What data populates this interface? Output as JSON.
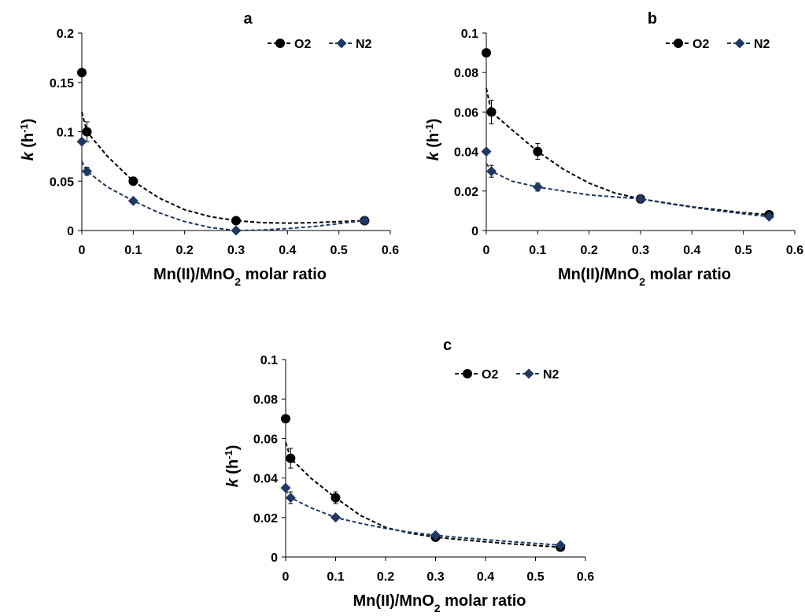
{
  "figure": {
    "panels_layout": "two on top row, one centered below"
  },
  "chart_data": [
    {
      "type": "scatter",
      "title": "a",
      "xlabel": "Mn(II)/MnO2 molar ratio",
      "ylabel": "k (h-1)",
      "xlim": [
        0,
        0.6
      ],
      "ylim": [
        0,
        0.2
      ],
      "x_ticks": [
        "0",
        "0.1",
        "0.2",
        "0.3",
        "0.4",
        "0.5",
        "0.6"
      ],
      "y_ticks": [
        "0",
        "0.05",
        "0.1",
        "0.15",
        "0.2"
      ],
      "legend_position": "top-right",
      "grid": false,
      "series": [
        {
          "name": "O2",
          "color": "#000000",
          "marker": "circle",
          "line": "dashed trend",
          "points": [
            {
              "x": 0,
              "y": 0.16,
              "err": 0.0
            },
            {
              "x": 0.01,
              "y": 0.1,
              "err": 0.01
            },
            {
              "x": 0.1,
              "y": 0.05,
              "err": 0.004
            },
            {
              "x": 0.3,
              "y": 0.01,
              "err": 0.0
            },
            {
              "x": 0.55,
              "y": 0.01,
              "err": 0.0
            }
          ],
          "trend": [
            [
              0,
              0.12
            ],
            [
              0.01,
              0.1
            ],
            [
              0.05,
              0.075
            ],
            [
              0.1,
              0.05
            ],
            [
              0.15,
              0.033
            ],
            [
              0.2,
              0.021
            ],
            [
              0.25,
              0.014
            ],
            [
              0.3,
              0.01
            ],
            [
              0.35,
              0.008
            ],
            [
              0.4,
              0.0075
            ],
            [
              0.45,
              0.008
            ],
            [
              0.5,
              0.009
            ],
            [
              0.55,
              0.01
            ]
          ]
        },
        {
          "name": "N2",
          "color": "#1f3864",
          "marker": "diamond",
          "line": "dashed trend",
          "points": [
            {
              "x": 0,
              "y": 0.09,
              "err": 0.0
            },
            {
              "x": 0.01,
              "y": 0.06,
              "err": 0.004
            },
            {
              "x": 0.1,
              "y": 0.03,
              "err": 0.0
            },
            {
              "x": 0.3,
              "y": 0.0,
              "err": 0.0
            },
            {
              "x": 0.55,
              "y": 0.01,
              "err": 0.0
            }
          ],
          "trend": [
            [
              0,
              0.07
            ],
            [
              0.01,
              0.06
            ],
            [
              0.05,
              0.044
            ],
            [
              0.1,
              0.03
            ],
            [
              0.15,
              0.018
            ],
            [
              0.2,
              0.009
            ],
            [
              0.25,
              0.003
            ],
            [
              0.3,
              0.0
            ],
            [
              0.35,
              0.0005
            ],
            [
              0.4,
              0.002
            ],
            [
              0.45,
              0.004
            ],
            [
              0.5,
              0.007
            ],
            [
              0.55,
              0.01
            ]
          ]
        }
      ]
    },
    {
      "type": "scatter",
      "title": "b",
      "xlabel": "Mn(II)/MnO2 molar ratio",
      "ylabel": "k (h-1)",
      "xlim": [
        0,
        0.6
      ],
      "ylim": [
        0,
        0.1
      ],
      "x_ticks": [
        "0",
        "0.1",
        "0.2",
        "0.3",
        "0.4",
        "0.5",
        "0.6"
      ],
      "y_ticks": [
        "0",
        "0.02",
        "0.04",
        "0.06",
        "0.08",
        "0.1"
      ],
      "legend_position": "top-right",
      "grid": false,
      "series": [
        {
          "name": "O2",
          "color": "#000000",
          "marker": "circle",
          "line": "dashed trend",
          "points": [
            {
              "x": 0,
              "y": 0.09,
              "err": 0.0
            },
            {
              "x": 0.01,
              "y": 0.06,
              "err": 0.006
            },
            {
              "x": 0.1,
              "y": 0.04,
              "err": 0.004
            },
            {
              "x": 0.3,
              "y": 0.016,
              "err": 0.0
            },
            {
              "x": 0.55,
              "y": 0.008,
              "err": 0.0
            }
          ],
          "trend": [
            [
              0,
              0.072
            ],
            [
              0.01,
              0.06
            ],
            [
              0.05,
              0.051
            ],
            [
              0.1,
              0.04
            ],
            [
              0.15,
              0.031
            ],
            [
              0.2,
              0.024
            ],
            [
              0.25,
              0.019
            ],
            [
              0.3,
              0.016
            ],
            [
              0.35,
              0.014
            ],
            [
              0.4,
              0.012
            ],
            [
              0.45,
              0.0105
            ],
            [
              0.5,
              0.009
            ],
            [
              0.55,
              0.008
            ]
          ]
        },
        {
          "name": "N2",
          "color": "#1f3864",
          "marker": "diamond",
          "line": "dashed trend",
          "points": [
            {
              "x": 0,
              "y": 0.04,
              "err": 0.0
            },
            {
              "x": 0.01,
              "y": 0.03,
              "err": 0.003
            },
            {
              "x": 0.1,
              "y": 0.022,
              "err": 0.002
            },
            {
              "x": 0.3,
              "y": 0.016,
              "err": 0.0
            },
            {
              "x": 0.55,
              "y": 0.007,
              "err": 0.0
            }
          ],
          "trend": [
            [
              0,
              0.034
            ],
            [
              0.01,
              0.03
            ],
            [
              0.05,
              0.025
            ],
            [
              0.1,
              0.022
            ],
            [
              0.15,
              0.02
            ],
            [
              0.2,
              0.018
            ],
            [
              0.25,
              0.017
            ],
            [
              0.3,
              0.016
            ],
            [
              0.35,
              0.0138
            ],
            [
              0.4,
              0.0118
            ],
            [
              0.45,
              0.01
            ],
            [
              0.5,
              0.0085
            ],
            [
              0.55,
              0.007
            ]
          ]
        }
      ]
    },
    {
      "type": "scatter",
      "title": "c",
      "xlabel": "Mn(II)/MnO2 molar ratio",
      "ylabel": "k (h-1)",
      "xlim": [
        0,
        0.6
      ],
      "ylim": [
        0,
        0.1
      ],
      "x_ticks": [
        "0",
        "0.1",
        "0.2",
        "0.3",
        "0.4",
        "0.5",
        "0.6"
      ],
      "y_ticks": [
        "0",
        "0.02",
        "0.04",
        "0.06",
        "0.08",
        "0.1"
      ],
      "legend_position": "top-right",
      "grid": false,
      "series": [
        {
          "name": "O2",
          "color": "#000000",
          "marker": "circle",
          "line": "dashed trend",
          "points": [
            {
              "x": 0,
              "y": 0.07,
              "err": 0.0
            },
            {
              "x": 0.01,
              "y": 0.05,
              "err": 0.005
            },
            {
              "x": 0.1,
              "y": 0.03,
              "err": 0.003
            },
            {
              "x": 0.3,
              "y": 0.01,
              "err": 0.0
            },
            {
              "x": 0.55,
              "y": 0.005,
              "err": 0.0
            }
          ],
          "trend": [
            [
              0,
              0.058
            ],
            [
              0.01,
              0.05
            ],
            [
              0.05,
              0.04
            ],
            [
              0.1,
              0.03
            ],
            [
              0.15,
              0.021
            ],
            [
              0.2,
              0.015
            ],
            [
              0.25,
              0.012
            ],
            [
              0.3,
              0.01
            ],
            [
              0.35,
              0.0088
            ],
            [
              0.4,
              0.0077
            ],
            [
              0.45,
              0.0067
            ],
            [
              0.5,
              0.0058
            ],
            [
              0.55,
              0.005
            ]
          ]
        },
        {
          "name": "N2",
          "color": "#1f3864",
          "marker": "diamond",
          "line": "dashed trend",
          "points": [
            {
              "x": 0,
              "y": 0.035,
              "err": 0.0
            },
            {
              "x": 0.01,
              "y": 0.03,
              "err": 0.003
            },
            {
              "x": 0.1,
              "y": 0.02,
              "err": 0.0
            },
            {
              "x": 0.3,
              "y": 0.011,
              "err": 0.0
            },
            {
              "x": 0.55,
              "y": 0.006,
              "err": 0.0
            }
          ],
          "trend": [
            [
              0,
              0.034
            ],
            [
              0.01,
              0.03
            ],
            [
              0.05,
              0.025
            ],
            [
              0.1,
              0.02
            ],
            [
              0.15,
              0.017
            ],
            [
              0.2,
              0.0145
            ],
            [
              0.25,
              0.0125
            ],
            [
              0.3,
              0.011
            ],
            [
              0.35,
              0.0098
            ],
            [
              0.4,
              0.0088
            ],
            [
              0.45,
              0.0078
            ],
            [
              0.5,
              0.0069
            ],
            [
              0.55,
              0.006
            ]
          ]
        }
      ]
    }
  ]
}
